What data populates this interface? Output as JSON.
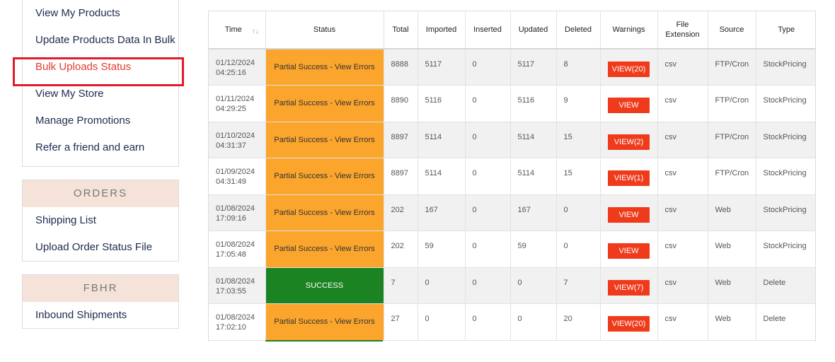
{
  "sidebar": {
    "links": [
      "View My Products",
      "Update Products Data In Bulk",
      "Bulk Uploads Status",
      "View My Store",
      "Manage Promotions",
      "Refer a friend and earn"
    ],
    "orders_heading": "ORDERS",
    "orders_links": [
      "Shipping List",
      "Upload Order Status File"
    ],
    "fbhr_heading": "FBHR",
    "fbhr_links": [
      "Inbound Shipments"
    ]
  },
  "table": {
    "headers": {
      "time": "Time",
      "status": "Status",
      "total": "Total",
      "imported": "Imported",
      "inserted": "Inserted",
      "updated": "Updated",
      "deleted": "Deleted",
      "warnings": "Warnings",
      "file_ext_line1": "File",
      "file_ext_line2": "Extension",
      "source": "Source",
      "type": "Type"
    },
    "sort_icon": "↑↓",
    "rows": [
      {
        "date": "01/12/2024",
        "clock": "04:25:16",
        "status": "Partial Success - View Errors",
        "total": "8888",
        "imported": "5117",
        "inserted": "0",
        "updated": "5117",
        "deleted": "8",
        "warnings": "VIEW(20)",
        "ext": "csv",
        "source": "FTP/Cron",
        "type": "StockPricing"
      },
      {
        "date": "01/11/2024",
        "clock": "04:29:25",
        "status": "Partial Success - View Errors",
        "total": "8890",
        "imported": "5116",
        "inserted": "0",
        "updated": "5116",
        "deleted": "9",
        "warnings": "VIEW",
        "ext": "csv",
        "source": "FTP/Cron",
        "type": "StockPricing"
      },
      {
        "date": "01/10/2024",
        "clock": "04:31:37",
        "status": "Partial Success - View Errors",
        "total": "8897",
        "imported": "5114",
        "inserted": "0",
        "updated": "5114",
        "deleted": "15",
        "warnings": "VIEW(2)",
        "ext": "csv",
        "source": "FTP/Cron",
        "type": "StockPricing"
      },
      {
        "date": "01/09/2024",
        "clock": "04:31:49",
        "status": "Partial Success - View Errors",
        "total": "8897",
        "imported": "5114",
        "inserted": "0",
        "updated": "5114",
        "deleted": "15",
        "warnings": "VIEW(1)",
        "ext": "csv",
        "source": "FTP/Cron",
        "type": "StockPricing"
      },
      {
        "date": "01/08/2024",
        "clock": "17:09:16",
        "status": "Partial Success - View Errors",
        "total": "202",
        "imported": "167",
        "inserted": "0",
        "updated": "167",
        "deleted": "0",
        "warnings": "VIEW",
        "ext": "csv",
        "source": "Web",
        "type": "StockPricing"
      },
      {
        "date": "01/08/2024",
        "clock": "17:05:48",
        "status": "Partial Success - View Errors",
        "total": "202",
        "imported": "59",
        "inserted": "0",
        "updated": "59",
        "deleted": "0",
        "warnings": "VIEW",
        "ext": "csv",
        "source": "Web",
        "type": "StockPricing"
      },
      {
        "date": "01/08/2024",
        "clock": "17:03:55",
        "status": "SUCCESS",
        "total": "7",
        "imported": "0",
        "inserted": "0",
        "updated": "0",
        "deleted": "7",
        "warnings": "VIEW(7)",
        "ext": "csv",
        "source": "Web",
        "type": "Delete"
      },
      {
        "date": "01/08/2024",
        "clock": "17:02:10",
        "status": "Partial Success - View Errors",
        "total": "27",
        "imported": "0",
        "inserted": "0",
        "updated": "0",
        "deleted": "20",
        "warnings": "VIEW(20)",
        "ext": "csv",
        "source": "Web",
        "type": "Delete"
      }
    ]
  },
  "colors": {
    "partial": "#fba52d",
    "success": "#1b8321",
    "view_button": "#ef3b1c",
    "highlight": "#e21b2c",
    "active_link": "#e03c2c"
  }
}
